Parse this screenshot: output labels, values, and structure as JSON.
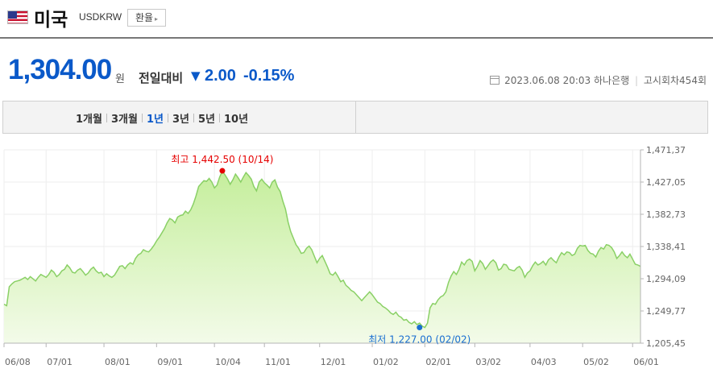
{
  "header": {
    "country": "미국",
    "code": "USDKRW",
    "exchange_button": "환율"
  },
  "quote": {
    "price": "1,304.00",
    "unit": "원",
    "change_label": "전일대비",
    "change_value": "2.00",
    "change_percent": "-0.15%",
    "date": "2023.06.08 20:03",
    "bank": "하나은행",
    "round": "고시회차454회"
  },
  "tabs": [
    "1개월",
    "3개월",
    "1년",
    "3년",
    "5년",
    "10년"
  ],
  "active_tab": "1년",
  "colors": {
    "accent": "#0a59c9",
    "line": "#8ad066",
    "fill_top": "#c5ee9c",
    "fill_bottom": "#f3fbe9",
    "high": "#e60000",
    "low": "#1a6fd1"
  },
  "chart_data": {
    "type": "area",
    "ylim": [
      1205.45,
      1471.37
    ],
    "y_ticks": [
      "1,471,37",
      "1,427,05",
      "1,382,73",
      "1,338,41",
      "1,294,09",
      "1,249,77",
      "1,205,45"
    ],
    "x_ticks": [
      "06/08",
      "07/01",
      "08/01",
      "09/01",
      "10/04",
      "11/01",
      "12/01",
      "01/02",
      "02/01",
      "03/02",
      "04/03",
      "05/02",
      "06/01"
    ],
    "x_tick_index": [
      0,
      16,
      38,
      58,
      80,
      99,
      120,
      140,
      160,
      179,
      200,
      220,
      239
    ],
    "high": {
      "label": "최고 1,442.50 (10/14)",
      "index": 83,
      "value": 1442.5
    },
    "low": {
      "label": "최저 1,227.00 (02/02)",
      "index": 158,
      "value": 1227.0
    },
    "values": [
      1259,
      1257,
      1283,
      1287,
      1290,
      1291,
      1292,
      1294,
      1296,
      1293,
      1297,
      1294,
      1291,
      1296,
      1300,
      1298,
      1296,
      1300,
      1306,
      1303,
      1297,
      1300,
      1305,
      1307,
      1313,
      1309,
      1303,
      1302,
      1306,
      1308,
      1304,
      1299,
      1302,
      1307,
      1310,
      1305,
      1302,
      1303,
      1297,
      1301,
      1298,
      1296,
      1299,
      1305,
      1311,
      1312,
      1308,
      1313,
      1316,
      1314,
      1322,
      1327,
      1329,
      1334,
      1332,
      1331,
      1335,
      1340,
      1346,
      1351,
      1357,
      1363,
      1371,
      1377,
      1375,
      1371,
      1379,
      1381,
      1382,
      1387,
      1384,
      1389,
      1397,
      1408,
      1421,
      1425,
      1429,
      1428,
      1432,
      1427,
      1419,
      1423,
      1434,
      1442,
      1437,
      1431,
      1424,
      1430,
      1438,
      1433,
      1427,
      1434,
      1440,
      1436,
      1431,
      1421,
      1415,
      1427,
      1431,
      1426,
      1423,
      1419,
      1427,
      1430,
      1420,
      1414,
      1401,
      1390,
      1372,
      1359,
      1350,
      1341,
      1336,
      1329,
      1330,
      1336,
      1339,
      1334,
      1325,
      1316,
      1322,
      1326,
      1318,
      1310,
      1301,
      1299,
      1303,
      1297,
      1290,
      1292,
      1285,
      1282,
      1278,
      1276,
      1272,
      1268,
      1264,
      1268,
      1272,
      1276,
      1272,
      1267,
      1262,
      1260,
      1256,
      1254,
      1251,
      1247,
      1245,
      1248,
      1243,
      1241,
      1237,
      1238,
      1234,
      1232,
      1235,
      1231,
      1233,
      1229,
      1227,
      1233,
      1254,
      1260,
      1259,
      1265,
      1269,
      1271,
      1276,
      1289,
      1298,
      1304,
      1300,
      1307,
      1317,
      1313,
      1319,
      1321,
      1318,
      1305,
      1311,
      1319,
      1315,
      1307,
      1312,
      1317,
      1320,
      1316,
      1306,
      1308,
      1314,
      1313,
      1307,
      1306,
      1305,
      1309,
      1311,
      1306,
      1296,
      1302,
      1305,
      1312,
      1317,
      1313,
      1315,
      1318,
      1313,
      1320,
      1323,
      1319,
      1316,
      1324,
      1330,
      1327,
      1331,
      1330,
      1326,
      1328,
      1336,
      1340,
      1339,
      1340,
      1333,
      1329,
      1328,
      1324,
      1332,
      1337,
      1335,
      1341,
      1340,
      1337,
      1331,
      1322,
      1326,
      1331,
      1326,
      1323,
      1328,
      1321,
      1314,
      1313,
      1311
    ]
  }
}
